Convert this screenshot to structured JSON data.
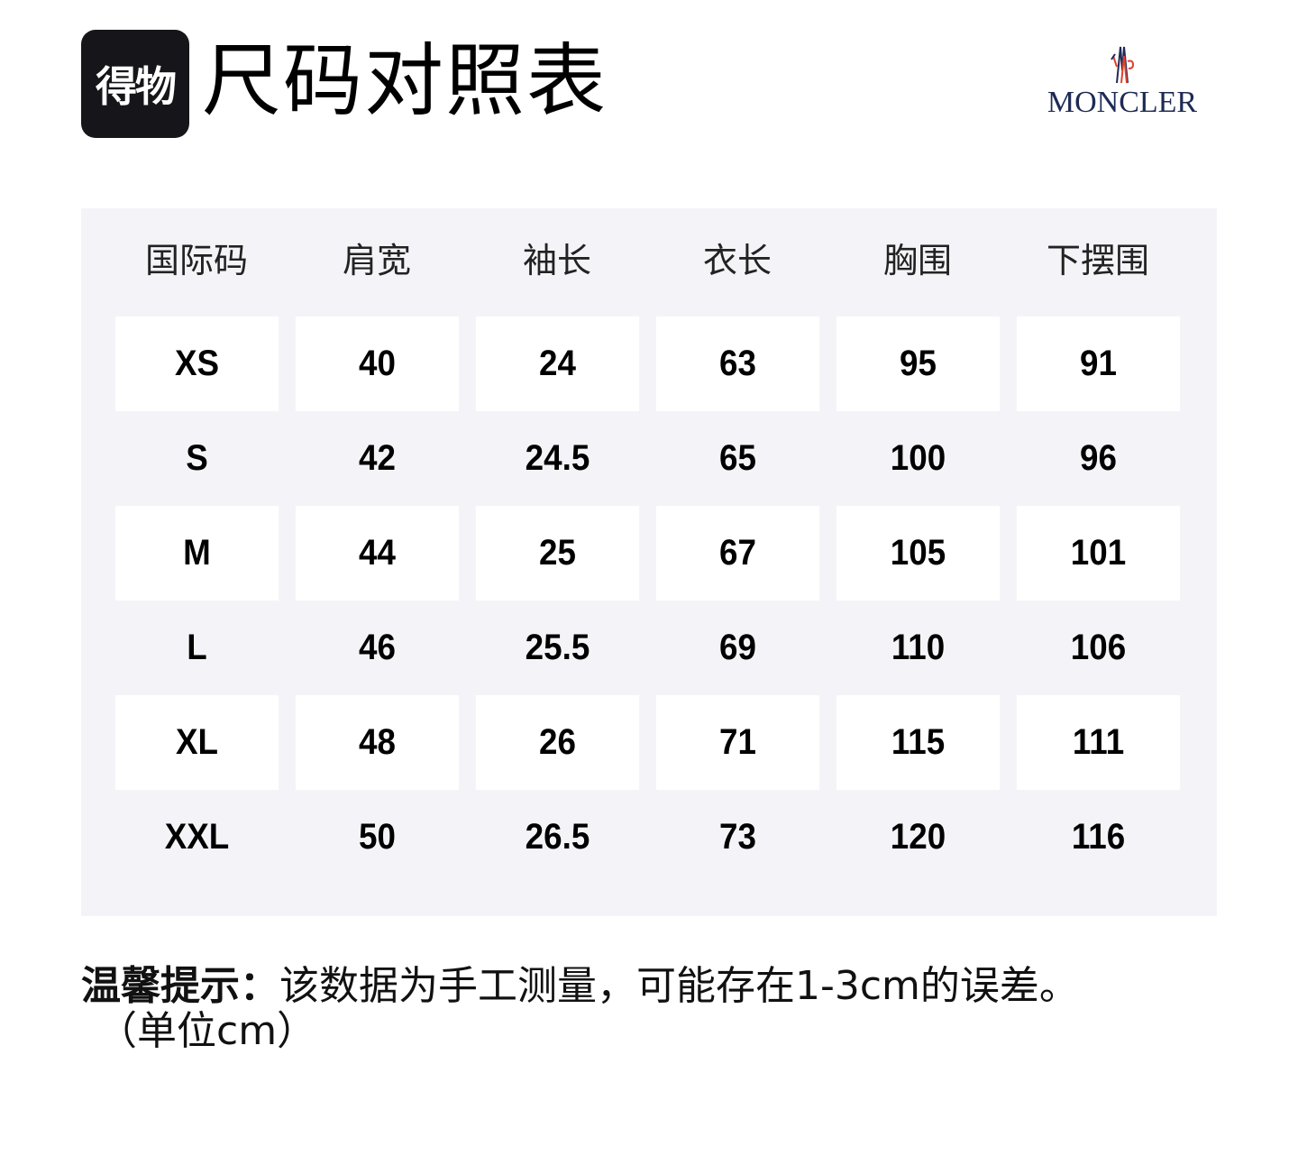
{
  "header": {
    "app_logo_text": "得物",
    "title": "尺码对照表",
    "brand": "MONCLER"
  },
  "table": {
    "columns": [
      "国际码",
      "肩宽",
      "袖长",
      "衣长",
      "胸围",
      "下摆围"
    ],
    "rows": [
      [
        "XS",
        "40",
        "24",
        "63",
        "95",
        "91"
      ],
      [
        "S",
        "42",
        "24.5",
        "65",
        "100",
        "96"
      ],
      [
        "M",
        "44",
        "25",
        "67",
        "105",
        "101"
      ],
      [
        "L",
        "46",
        "25.5",
        "69",
        "110",
        "106"
      ],
      [
        "XL",
        "48",
        "26",
        "71",
        "115",
        "111"
      ],
      [
        "XXL",
        "50",
        "26.5",
        "73",
        "120",
        "116"
      ]
    ]
  },
  "footer": {
    "note_label": "温馨提示：",
    "note_text": "该数据为手工测量，可能存在1-3cm的误差。",
    "unit": "（单位cm）"
  },
  "colors": {
    "table_bg": "#f4f4f8",
    "brand": "#1e2a55",
    "logo_bg": "#16161a"
  }
}
